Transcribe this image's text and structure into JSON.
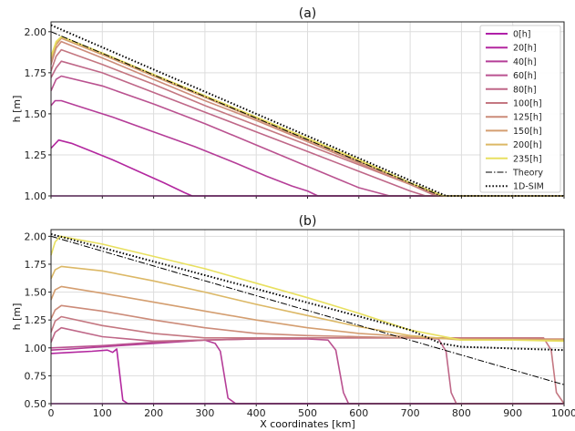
{
  "chart_data": [
    {
      "type": "line",
      "title": "(a)",
      "xlabel": "",
      "ylabel": "h [m]",
      "xlim": [
        0,
        1000
      ],
      "ylim": [
        1.0,
        2.06
      ],
      "grid": true,
      "legend_placement": "top-right",
      "xticks": [
        0,
        100,
        200,
        300,
        400,
        500,
        600,
        700,
        800,
        900,
        1000
      ],
      "xtick_labels": [
        "",
        "",
        "",
        "",
        "",
        "",
        "",
        "",
        "",
        "",
        ""
      ],
      "yticks": [
        1.0,
        1.25,
        1.5,
        1.75,
        2.0
      ],
      "ytick_labels": [
        "1.00",
        "1.25",
        "1.50",
        "1.75",
        "2.00"
      ],
      "series": [
        {
          "name": "0[h]",
          "color": "#b01fa8",
          "style": "solid",
          "x": [
            0,
            1000
          ],
          "y": [
            1.0,
            1.0
          ]
        },
        {
          "name": "20[h]",
          "color": "#b3279f",
          "style": "solid",
          "x": [
            0,
            15,
            40,
            80,
            120,
            170,
            220,
            260,
            275,
            1000
          ],
          "y": [
            1.29,
            1.34,
            1.32,
            1.27,
            1.22,
            1.15,
            1.08,
            1.02,
            1.0,
            1.0
          ]
        },
        {
          "name": "40[h]",
          "color": "#b53d98",
          "style": "solid",
          "x": [
            0,
            8,
            20,
            60,
            120,
            200,
            280,
            360,
            420,
            470,
            500,
            520,
            1000
          ],
          "y": [
            1.55,
            1.58,
            1.58,
            1.54,
            1.48,
            1.39,
            1.3,
            1.2,
            1.12,
            1.06,
            1.03,
            1.0,
            1.0
          ]
        },
        {
          "name": "60[h]",
          "color": "#ba5290",
          "style": "solid",
          "x": [
            0,
            10,
            20,
            100,
            200,
            300,
            400,
            500,
            600,
            660,
            1000
          ],
          "y": [
            1.64,
            1.71,
            1.73,
            1.67,
            1.56,
            1.44,
            1.31,
            1.18,
            1.05,
            1.0,
            1.0
          ]
        },
        {
          "name": "80[h]",
          "color": "#bf6788",
          "style": "solid",
          "x": [
            0,
            10,
            20,
            100,
            200,
            300,
            400,
            500,
            600,
            700,
            730,
            1000
          ],
          "y": [
            1.72,
            1.78,
            1.82,
            1.75,
            1.63,
            1.51,
            1.39,
            1.27,
            1.15,
            1.03,
            1.0,
            1.0
          ]
        },
        {
          "name": "100[h]",
          "color": "#c47781",
          "style": "solid",
          "x": [
            0,
            10,
            20,
            100,
            200,
            300,
            400,
            500,
            600,
            700,
            750,
            1000
          ],
          "y": [
            1.76,
            1.85,
            1.89,
            1.8,
            1.68,
            1.55,
            1.43,
            1.31,
            1.19,
            1.07,
            1.0,
            1.0
          ]
        },
        {
          "name": "125[h]",
          "color": "#cc8b79",
          "style": "solid",
          "x": [
            0,
            10,
            20,
            100,
            200,
            300,
            400,
            500,
            600,
            700,
            758,
            1000
          ],
          "y": [
            1.8,
            1.9,
            1.94,
            1.84,
            1.71,
            1.58,
            1.46,
            1.33,
            1.2,
            1.07,
            1.0,
            1.0
          ]
        },
        {
          "name": "150[h]",
          "color": "#d49e70",
          "style": "solid",
          "x": [
            0,
            10,
            20,
            100,
            200,
            300,
            400,
            500,
            600,
            700,
            762,
            1000
          ],
          "y": [
            1.82,
            1.92,
            1.96,
            1.86,
            1.73,
            1.6,
            1.47,
            1.34,
            1.21,
            1.08,
            1.0,
            1.0
          ]
        },
        {
          "name": "200[h]",
          "color": "#dcb866",
          "style": "solid",
          "x": [
            0,
            10,
            20,
            100,
            200,
            300,
            400,
            500,
            600,
            700,
            765,
            1000
          ],
          "y": [
            1.84,
            1.93,
            1.97,
            1.87,
            1.74,
            1.61,
            1.48,
            1.35,
            1.22,
            1.08,
            1.0,
            1.0
          ]
        },
        {
          "name": "235[h]",
          "color": "#e8e060",
          "style": "solid",
          "x": [
            0,
            10,
            20,
            100,
            200,
            300,
            400,
            500,
            600,
            700,
            765,
            1000
          ],
          "y": [
            1.85,
            1.94,
            1.97,
            1.87,
            1.74,
            1.61,
            1.48,
            1.35,
            1.22,
            1.08,
            1.0,
            1.0
          ]
        },
        {
          "name": "Theory",
          "color": "#000000",
          "style": "dashdot",
          "x": [
            0,
            760,
            1000
          ],
          "y": [
            2.0,
            1.0,
            1.0
          ]
        },
        {
          "name": "1D-SIM",
          "color": "#000000",
          "style": "dotted",
          "x": [
            0,
            770,
            1000
          ],
          "y": [
            2.04,
            1.0,
            1.0
          ]
        }
      ]
    },
    {
      "type": "line",
      "title": "(b)",
      "xlabel": "X coordinates [km]",
      "ylabel": "h [m]",
      "xlim": [
        0,
        1000
      ],
      "ylim": [
        0.5,
        2.06
      ],
      "grid": true,
      "xticks": [
        0,
        100,
        200,
        300,
        400,
        500,
        600,
        700,
        800,
        900,
        1000
      ],
      "xtick_labels": [
        "0",
        "100",
        "200",
        "300",
        "400",
        "500",
        "600",
        "700",
        "800",
        "900",
        "1000"
      ],
      "yticks": [
        0.5,
        0.75,
        1.0,
        1.25,
        1.5,
        1.75,
        2.0
      ],
      "ytick_labels": [
        "0.50",
        "0.75",
        "1.00",
        "1.25",
        "1.50",
        "1.75",
        "2.00"
      ],
      "series": [
        {
          "name": "0[h]",
          "color": "#b01fa8",
          "style": "solid",
          "x": [
            0,
            1000
          ],
          "y": [
            0.5,
            0.5
          ]
        },
        {
          "name": "20[h]",
          "color": "#b3279f",
          "style": "solid",
          "x": [
            0,
            40,
            80,
            110,
            120,
            128,
            140,
            150,
            1000
          ],
          "y": [
            0.95,
            0.96,
            0.97,
            0.98,
            0.96,
            0.99,
            0.53,
            0.5,
            0.5
          ]
        },
        {
          "name": "40[h]",
          "color": "#b53d98",
          "style": "solid",
          "x": [
            0,
            40,
            100,
            200,
            300,
            320,
            330,
            345,
            360,
            1000
          ],
          "y": [
            0.98,
            0.99,
            1.01,
            1.04,
            1.07,
            1.04,
            0.97,
            0.55,
            0.5,
            0.5
          ]
        },
        {
          "name": "60[h]",
          "color": "#ba5290",
          "style": "solid",
          "x": [
            0,
            100,
            200,
            300,
            400,
            500,
            540,
            555,
            570,
            580,
            1000
          ],
          "y": [
            1.0,
            1.02,
            1.05,
            1.07,
            1.08,
            1.08,
            1.07,
            0.98,
            0.6,
            0.5,
            0.5
          ]
        },
        {
          "name": "80[h]",
          "color": "#bf6788",
          "style": "solid",
          "x": [
            0,
            8,
            20,
            100,
            200,
            300,
            400,
            500,
            600,
            700,
            755,
            770,
            780,
            790,
            1000
          ],
          "y": [
            1.05,
            1.14,
            1.18,
            1.1,
            1.06,
            1.07,
            1.08,
            1.09,
            1.09,
            1.09,
            1.08,
            0.97,
            0.6,
            0.5,
            0.5
          ]
        },
        {
          "name": "100[h]",
          "color": "#c47781",
          "style": "solid",
          "x": [
            0,
            8,
            20,
            100,
            200,
            300,
            400,
            500,
            600,
            700,
            800,
            900,
            960,
            975,
            985,
            1000
          ],
          "y": [
            1.14,
            1.24,
            1.28,
            1.2,
            1.13,
            1.09,
            1.09,
            1.09,
            1.09,
            1.09,
            1.09,
            1.09,
            1.09,
            0.98,
            0.6,
            0.5
          ]
        },
        {
          "name": "125[h]",
          "color": "#cc8b79",
          "style": "solid",
          "x": [
            0,
            8,
            20,
            100,
            200,
            300,
            400,
            500,
            600,
            700,
            800,
            900,
            1000
          ],
          "y": [
            1.26,
            1.34,
            1.38,
            1.33,
            1.25,
            1.18,
            1.13,
            1.11,
            1.1,
            1.09,
            1.08,
            1.08,
            1.08
          ]
        },
        {
          "name": "150[h]",
          "color": "#d49e70",
          "style": "solid",
          "x": [
            0,
            8,
            20,
            100,
            200,
            300,
            400,
            500,
            600,
            700,
            800,
            900,
            1000
          ],
          "y": [
            1.43,
            1.52,
            1.55,
            1.49,
            1.41,
            1.33,
            1.25,
            1.18,
            1.13,
            1.1,
            1.08,
            1.07,
            1.07
          ]
        },
        {
          "name": "200[h]",
          "color": "#dcb866",
          "style": "solid",
          "x": [
            0,
            8,
            20,
            100,
            200,
            300,
            400,
            500,
            600,
            700,
            800,
            900,
            1000
          ],
          "y": [
            1.62,
            1.7,
            1.73,
            1.69,
            1.6,
            1.5,
            1.39,
            1.29,
            1.19,
            1.11,
            1.07,
            1.07,
            1.07
          ]
        },
        {
          "name": "235[h]",
          "color": "#e8e060",
          "style": "solid",
          "x": [
            0,
            8,
            18,
            100,
            200,
            300,
            400,
            500,
            600,
            700,
            800,
            900,
            1000
          ],
          "y": [
            1.83,
            1.95,
            2.0,
            1.93,
            1.82,
            1.71,
            1.58,
            1.45,
            1.31,
            1.16,
            1.07,
            1.07,
            1.06
          ]
        },
        {
          "name": "Theory",
          "color": "#000000",
          "style": "dashdot",
          "x": [
            0,
            1000
          ],
          "y": [
            2.0,
            0.67
          ]
        },
        {
          "name": "1D-SIM",
          "color": "#000000",
          "style": "dotted",
          "x": [
            0,
            700,
            760,
            800,
            1000
          ],
          "y": [
            2.02,
            1.16,
            1.04,
            1.01,
            0.98
          ]
        }
      ]
    }
  ]
}
